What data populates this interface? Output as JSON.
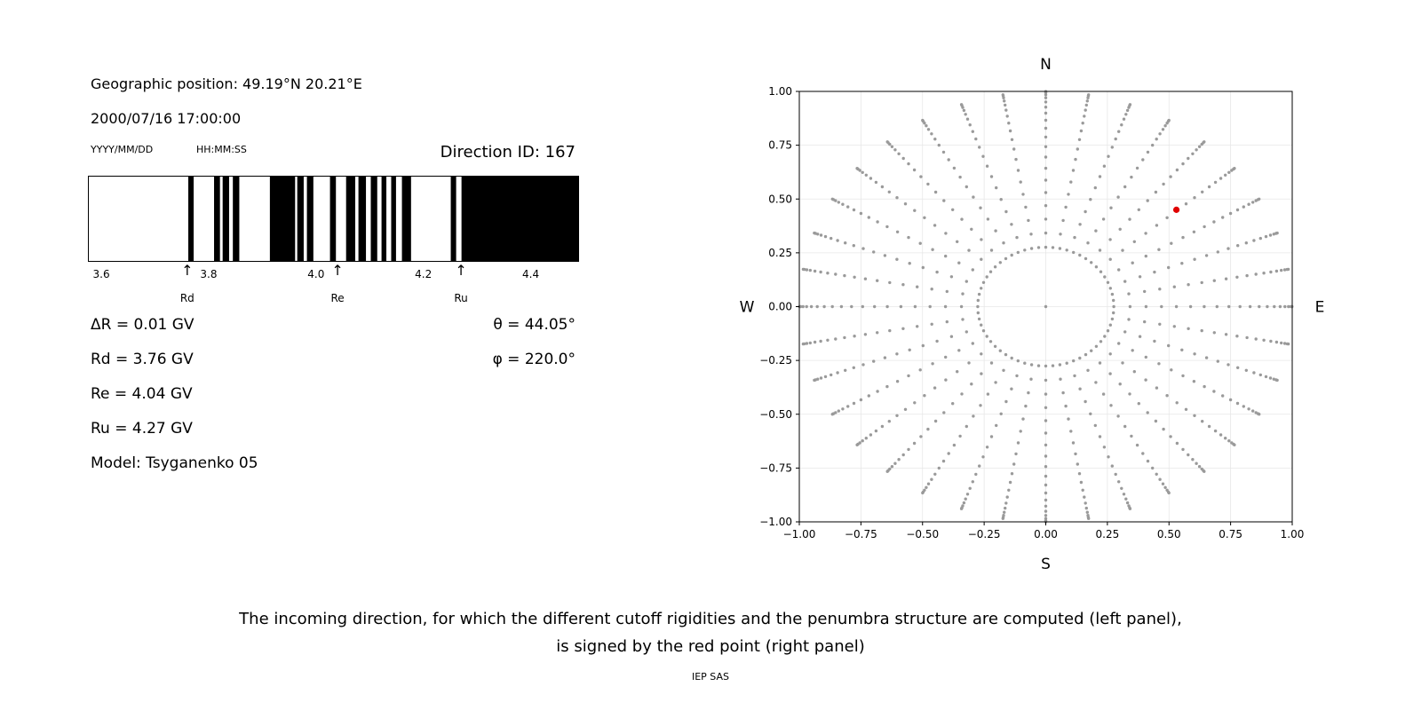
{
  "left_panel": {
    "geo_position": "Geographic position: 49.19°N 20.21°E",
    "datetime": "2000/07/16 17:00:00",
    "date_format": "YYYY/MM/DD",
    "time_format": "HH:MM:SS",
    "direction_id": "Direction ID: 167",
    "stats": {
      "delta_r": "ΔR = 0.01 GV",
      "rd": "Rd = 3.76 GV",
      "re": "Re = 4.04 GV",
      "ru": "Ru = 4.27 GV",
      "model": "Model: Tsyganenko 05",
      "theta": "θ = 44.05°",
      "phi": "φ = 220.0°"
    }
  },
  "caption": {
    "line1": "The incoming direction, for which the different cutoff rigidities and the penumbra structure are computed (left panel),",
    "line2": "is signed by the red point (right panel)",
    "credit": "IEP SAS"
  },
  "chart_data": [
    {
      "id": "penumbra-spectrum",
      "type": "bar",
      "x_range": [
        3.575,
        4.49
      ],
      "xtick_values": [
        3.6,
        3.8,
        4.0,
        4.2,
        4.4
      ],
      "xtick_labels": [
        "3.6",
        "3.8",
        "4.0",
        "4.2",
        "4.4"
      ],
      "bar_color": "#000000",
      "background": "#ffffff",
      "segments_gv": [
        [
          3.762,
          3.772
        ],
        [
          3.81,
          3.821
        ],
        [
          3.826,
          3.838
        ],
        [
          3.845,
          3.857
        ],
        [
          3.914,
          3.961
        ],
        [
          3.965,
          3.977
        ],
        [
          3.983,
          3.995
        ],
        [
          4.026,
          4.037
        ],
        [
          4.056,
          4.073
        ],
        [
          4.079,
          4.093
        ],
        [
          4.102,
          4.114
        ],
        [
          4.122,
          4.131
        ],
        [
          4.14,
          4.149
        ],
        [
          4.16,
          4.177
        ],
        [
          4.251,
          4.261
        ],
        [
          4.271,
          4.49
        ]
      ],
      "markers": [
        {
          "label": "Rd",
          "x": 3.76
        },
        {
          "label": "Re",
          "x": 4.04
        },
        {
          "label": "Ru",
          "x": 4.27
        }
      ]
    },
    {
      "id": "incoming-direction-map",
      "type": "scatter",
      "xlim": [
        -1,
        1
      ],
      "ylim": [
        -1,
        1
      ],
      "xtick_values": [
        -1,
        -0.75,
        -0.5,
        -0.25,
        0,
        0.25,
        0.5,
        0.75,
        1
      ],
      "xtick_labels": [
        "−1.00",
        "−0.75",
        "−0.50",
        "−0.25",
        "0.00",
        "0.25",
        "0.50",
        "0.75",
        "1.00"
      ],
      "ytick_values": [
        -1,
        -0.75,
        -0.5,
        -0.25,
        0,
        0.25,
        0.5,
        0.75,
        1
      ],
      "ytick_labels": [
        "−1.00",
        "−0.75",
        "−0.50",
        "−0.25",
        "0.00",
        "0.25",
        "0.50",
        "0.75",
        "1.00"
      ],
      "compass": {
        "top": "N",
        "bottom": "S",
        "left": "W",
        "right": "E"
      },
      "grid": true,
      "grid_color": "#e7e7e7",
      "dot_color": "#9a9a9a",
      "direction_grid": {
        "azimuth_step_deg": 10,
        "zenith_start_deg": 20,
        "zenith_end_deg": 88,
        "zenith_step_deg": 4,
        "projection": "r=sin(zenith)",
        "inner_ring_radius": 0.276,
        "inner_ring_count": 60,
        "center_dot": true
      },
      "red_point": {
        "x": 0.53,
        "y": 0.45,
        "color": "#e00000"
      }
    }
  ]
}
